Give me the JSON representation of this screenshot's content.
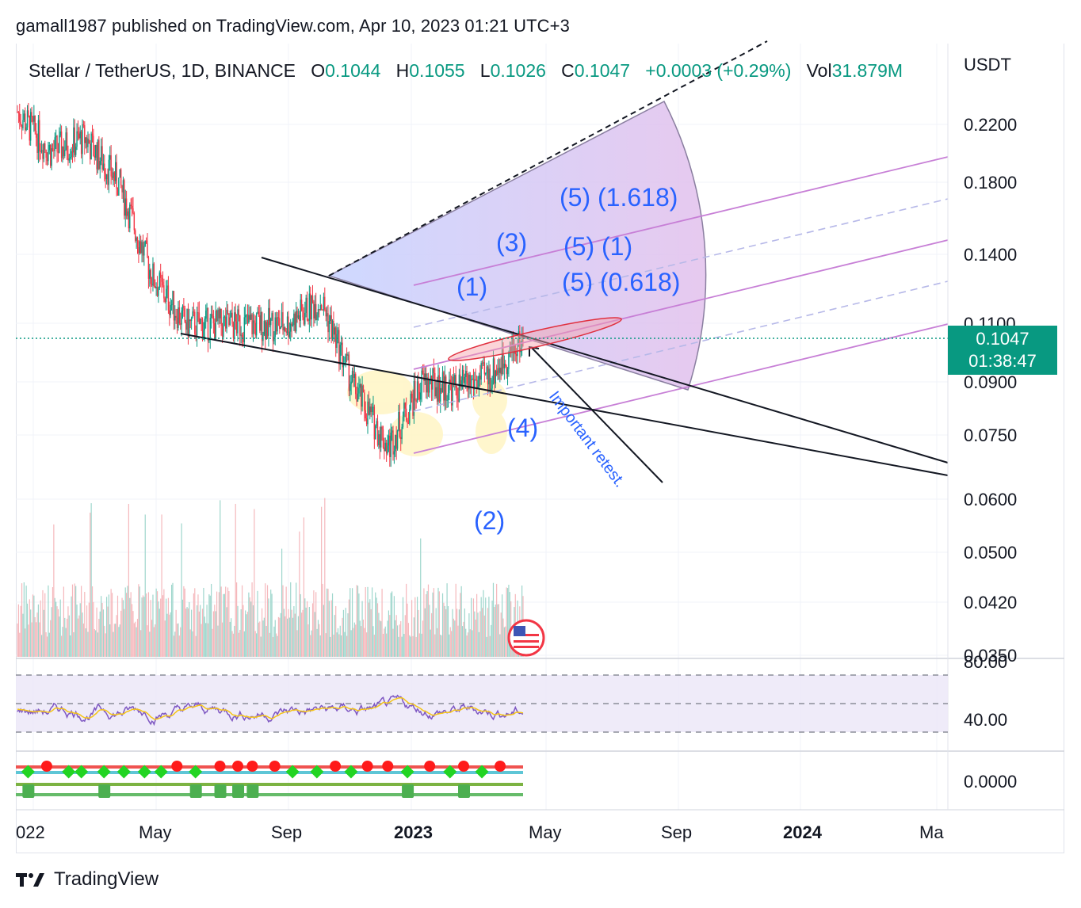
{
  "header": {
    "text": "gamall1987 published on TradingView.com, Apr 10, 2023 01:21 UTC+3"
  },
  "legend": {
    "symbol": "Stellar / TetherUS, 1D, BINANCE",
    "o_label": "O",
    "o_value": "0.1044",
    "h_label": "H",
    "h_value": "0.1055",
    "l_label": "L",
    "l_value": "0.1026",
    "c_label": "C",
    "c_value": "0.1047",
    "change": "+0.0003 (+0.29%)",
    "vol_label": "Vol",
    "vol_value": "31.879M"
  },
  "price_badge": {
    "price": "0.1047",
    "countdown": "01:38:47"
  },
  "annotations": {
    "wave_1": "(1)",
    "wave_2": "(2)",
    "wave_3": "(3)",
    "wave_4": "(4)",
    "target_1618": "(5) (1.618)",
    "target_1": "(5) (1)",
    "target_0618": "(5) (0.618)",
    "retest": "Important retest."
  },
  "footer": {
    "brand": "TradingView"
  },
  "colors": {
    "up": "#089981",
    "down": "#f23645",
    "fan_fill_start": "#c5d0ff",
    "fan_fill_end": "#e3c2ee",
    "channel": "#c77fd6",
    "wave_label": "#2962ff",
    "rsi": "#7e57c2",
    "rsi_ma": "#f5c518"
  },
  "chart_data": {
    "type": "candlestick",
    "pair": "XLM/USDT",
    "timeframe": "1D",
    "exchange": "BINANCE",
    "y_axis": {
      "unit": "USDT",
      "scale": "log",
      "tick_labels": [
        "0.2200",
        "0.1800",
        "0.1400",
        "0.1100",
        "0.0900",
        "0.0750",
        "0.0600",
        "0.0500",
        "0.0420",
        "0.0350"
      ],
      "ticks": [
        0.22,
        0.18,
        0.14,
        0.11,
        0.09,
        0.075,
        0.06,
        0.05,
        0.042,
        0.035
      ]
    },
    "x_axis": {
      "tick_labels": [
        "022",
        "May",
        "Sep",
        "2023",
        "May",
        "Sep",
        "2024",
        "Ma"
      ]
    },
    "last_close": 0.1047,
    "approx_monthly_closes": [
      {
        "month": "2022-01",
        "close": 0.23
      },
      {
        "month": "2022-02",
        "close": 0.2
      },
      {
        "month": "2022-03",
        "close": 0.21
      },
      {
        "month": "2022-04",
        "close": 0.18
      },
      {
        "month": "2022-05",
        "close": 0.13
      },
      {
        "month": "2022-06",
        "close": 0.11
      },
      {
        "month": "2022-07",
        "close": 0.11
      },
      {
        "month": "2022-08",
        "close": 0.11
      },
      {
        "month": "2022-09",
        "close": 0.11
      },
      {
        "month": "2022-10",
        "close": 0.12
      },
      {
        "month": "2022-11",
        "close": 0.088
      },
      {
        "month": "2022-12",
        "close": 0.072
      },
      {
        "month": "2023-01",
        "close": 0.09
      },
      {
        "month": "2023-02",
        "close": 0.088
      },
      {
        "month": "2023-03",
        "close": 0.092
      },
      {
        "month": "2023-04",
        "close": 0.1047
      }
    ],
    "rsi": {
      "tick_labels": [
        "80.00",
        "40.00"
      ],
      "ticks": [
        80,
        40
      ],
      "bands": [
        70,
        50,
        30
      ]
    },
    "oscillator": {
      "tick_labels": [
        "0.0000"
      ],
      "ticks": [
        0
      ]
    }
  }
}
